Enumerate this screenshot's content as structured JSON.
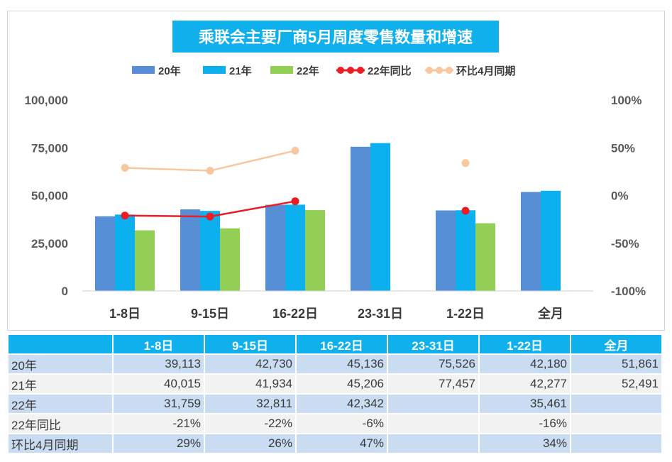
{
  "chart_data": {
    "type": "bar",
    "title": "乘联会主要厂商5月周度零售数量和增速",
    "categories": [
      "1-8日",
      "9-15日",
      "16-22日",
      "23-31日",
      "1-22日",
      "全月"
    ],
    "series": [
      {
        "name": "20年",
        "type": "bar",
        "color": "#568fd6",
        "values": [
          39113,
          42730,
          45136,
          75526,
          42180,
          51861
        ]
      },
      {
        "name": "21年",
        "type": "bar",
        "color": "#0cb0ee",
        "values": [
          40015,
          41934,
          45206,
          77457,
          42277,
          52491
        ]
      },
      {
        "name": "22年",
        "type": "bar",
        "color": "#93cf55",
        "values": [
          31759,
          32811,
          42342,
          null,
          35461,
          null
        ]
      },
      {
        "name": "22年同比",
        "type": "line",
        "axis": "right",
        "color": "#ec1c24",
        "values": [
          -0.21,
          -0.22,
          -0.06,
          null,
          -0.16,
          null
        ]
      },
      {
        "name": "环比4月同期",
        "type": "line",
        "axis": "right",
        "color": "#f8c79e",
        "values": [
          0.29,
          0.26,
          0.47,
          null,
          0.34,
          null
        ]
      }
    ],
    "y_left": {
      "min": 0,
      "max": 100000,
      "ticks": [
        0,
        25000,
        50000,
        75000,
        100000
      ],
      "tick_labels": [
        "0",
        "25,000",
        "50,000",
        "75,000",
        "100,000"
      ]
    },
    "y_right": {
      "min": -1,
      "max": 1,
      "ticks": [
        -1,
        -0.5,
        0,
        0.5,
        1
      ],
      "tick_labels": [
        "-100%",
        "-50%",
        "0%",
        "50%",
        "100%"
      ]
    },
    "grid": false,
    "legend_position": "top-center"
  },
  "table": {
    "headers": [
      "",
      "1-8日",
      "9-15日",
      "16-22日",
      "23-31日",
      "1-22日",
      "全月"
    ],
    "rows": [
      {
        "label": "20年",
        "cells": [
          "39,113",
          "42,730",
          "45,136",
          "75,526",
          "42,180",
          "51,861"
        ]
      },
      {
        "label": "21年",
        "cells": [
          "40,015",
          "41,934",
          "45,206",
          "77,457",
          "42,277",
          "52,491"
        ]
      },
      {
        "label": "22年",
        "cells": [
          "31,759",
          "32,811",
          "42,342",
          "",
          "35,461",
          ""
        ]
      },
      {
        "label": "22年同比",
        "cells": [
          "-21%",
          "-22%",
          "-6%",
          "",
          "-16%",
          ""
        ]
      },
      {
        "label": "环比4月同期",
        "cells": [
          "29%",
          "26%",
          "47%",
          "",
          "34%",
          ""
        ]
      }
    ]
  }
}
